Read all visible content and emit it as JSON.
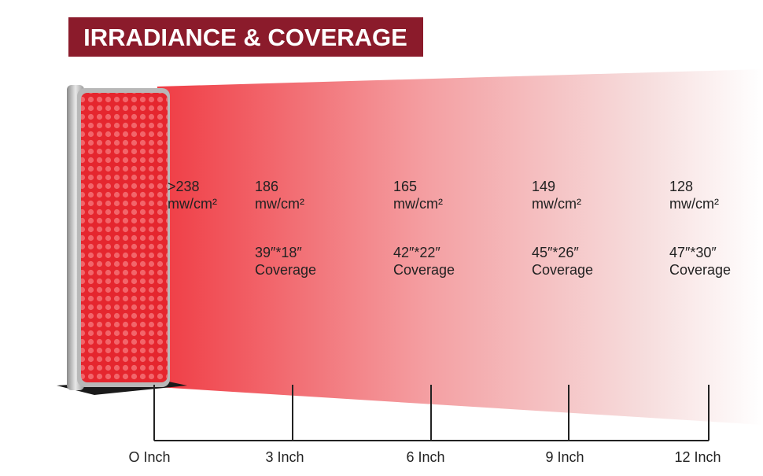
{
  "header": {
    "title": "IRRADIANCE & COVERAGE"
  },
  "columns": [
    {
      "irradiance": ">238",
      "unit": "mw/cm²"
    },
    {
      "irradiance": "186",
      "unit": "mw/cm²",
      "size": "39″*18″",
      "coverage": "Coverage"
    },
    {
      "irradiance": "165",
      "unit": "mw/cm²",
      "size": "42″*22″",
      "coverage": "Coverage"
    },
    {
      "irradiance": "149",
      "unit": "mw/cm²",
      "size": "45″*26″",
      "coverage": "Coverage"
    },
    {
      "irradiance": "128",
      "unit": "mw/cm²",
      "size": "47″*30″",
      "coverage": "Coverage"
    }
  ],
  "distances": [
    "O Inch",
    "3 Inch",
    "6 Inch",
    "9 Inch",
    "12 Inch"
  ]
}
